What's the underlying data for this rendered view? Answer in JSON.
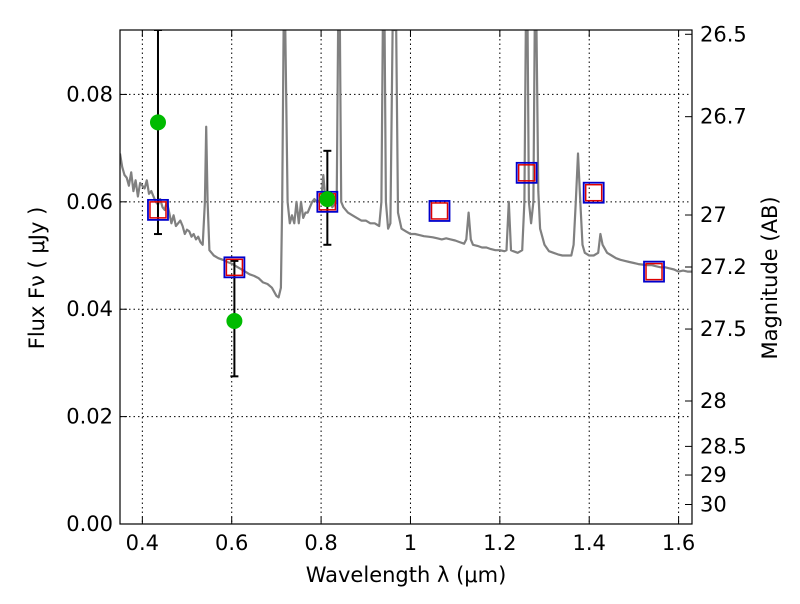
{
  "chart_data": {
    "type": "scatter",
    "title": "",
    "xlabel": "Wavelength  λ (μm)",
    "ylabel": "Flux  Fν  ( μJy )",
    "y2label": "Magnitude (AB)",
    "xlim": [
      0.35,
      1.63
    ],
    "ylim": [
      0.0,
      0.092
    ],
    "xticks": [
      0.4,
      0.6,
      0.8,
      1.0,
      1.2,
      1.4,
      1.6
    ],
    "xtick_labels": [
      "0.4",
      "0.6",
      "0.8",
      "1",
      "1.2",
      "1.4",
      "1.6"
    ],
    "yticks": [
      0.0,
      0.02,
      0.04,
      0.06,
      0.08
    ],
    "ytick_labels": [
      "0.00",
      "0.02",
      "0.04",
      "0.06",
      "0.08"
    ],
    "y2ticks": [
      {
        "label": "26.5",
        "mag": 26.5
      },
      {
        "label": "26.7",
        "mag": 26.7
      },
      {
        "label": "27",
        "mag": 27.0
      },
      {
        "label": "27.2",
        "mag": 27.2
      },
      {
        "label": "27.5",
        "mag": 27.5
      },
      {
        "label": "28",
        "mag": 28.0
      },
      {
        "label": "28.5",
        "mag": 28.5
      },
      {
        "label": "29",
        "mag": 29.0
      },
      {
        "label": "30",
        "mag": 30.0
      }
    ],
    "grid": true,
    "colors": {
      "sed": "#808080",
      "observed": "#00bb00",
      "model_box": "#0000cc",
      "model_box_inner": "#dd0000",
      "errorbar": "#000000"
    },
    "series": [
      {
        "kind": "line",
        "points": [
          [
            0.35,
            0.069
          ],
          [
            0.355,
            0.0665
          ],
          [
            0.36,
            0.065
          ],
          [
            0.365,
            0.0645
          ],
          [
            0.37,
            0.063
          ],
          [
            0.375,
            0.0655
          ],
          [
            0.38,
            0.062
          ],
          [
            0.385,
            0.064
          ],
          [
            0.39,
            0.061
          ],
          [
            0.395,
            0.0635
          ],
          [
            0.4,
            0.063
          ],
          [
            0.405,
            0.0625
          ],
          [
            0.41,
            0.064
          ],
          [
            0.415,
            0.0615
          ],
          [
            0.42,
            0.062
          ],
          [
            0.425,
            0.061
          ],
          [
            0.43,
            0.06
          ],
          [
            0.435,
            0.0595
          ],
          [
            0.44,
            0.0605
          ],
          [
            0.445,
            0.059
          ],
          [
            0.45,
            0.0585
          ],
          [
            0.455,
            0.06
          ],
          [
            0.46,
            0.058
          ],
          [
            0.465,
            0.056
          ],
          [
            0.47,
            0.0575
          ],
          [
            0.475,
            0.0555
          ],
          [
            0.48,
            0.056
          ],
          [
            0.485,
            0.0565
          ],
          [
            0.49,
            0.0555
          ],
          [
            0.495,
            0.054
          ],
          [
            0.5,
            0.0548
          ],
          [
            0.505,
            0.0545
          ],
          [
            0.51,
            0.0535
          ],
          [
            0.515,
            0.054
          ],
          [
            0.52,
            0.053
          ],
          [
            0.525,
            0.0535
          ],
          [
            0.53,
            0.0525
          ],
          [
            0.535,
            0.052
          ],
          [
            0.54,
            0.06
          ],
          [
            0.543,
            0.074
          ],
          [
            0.546,
            0.06
          ],
          [
            0.55,
            0.051
          ],
          [
            0.56,
            0.05
          ],
          [
            0.57,
            0.0495
          ],
          [
            0.58,
            0.0492
          ],
          [
            0.59,
            0.0488
          ],
          [
            0.6,
            0.0485
          ],
          [
            0.61,
            0.048
          ],
          [
            0.62,
            0.0475
          ],
          [
            0.63,
            0.047
          ],
          [
            0.64,
            0.0465
          ],
          [
            0.65,
            0.0462
          ],
          [
            0.66,
            0.0458
          ],
          [
            0.67,
            0.045
          ],
          [
            0.68,
            0.0447
          ],
          [
            0.69,
            0.044
          ],
          [
            0.7,
            0.0425
          ],
          [
            0.705,
            0.0422
          ],
          [
            0.71,
            0.044
          ],
          [
            0.713,
            0.06
          ],
          [
            0.716,
            0.092
          ],
          [
            0.72,
            0.092
          ],
          [
            0.725,
            0.06
          ],
          [
            0.73,
            0.056
          ],
          [
            0.735,
            0.0575
          ],
          [
            0.74,
            0.056
          ],
          [
            0.745,
            0.06
          ],
          [
            0.75,
            0.056
          ],
          [
            0.755,
            0.06
          ],
          [
            0.76,
            0.057
          ],
          [
            0.765,
            0.058
          ],
          [
            0.77,
            0.058
          ],
          [
            0.775,
            0.059
          ],
          [
            0.78,
            0.06
          ],
          [
            0.785,
            0.0605
          ],
          [
            0.79,
            0.06
          ],
          [
            0.795,
            0.0602
          ],
          [
            0.8,
            0.06
          ],
          [
            0.805,
            0.065
          ],
          [
            0.81,
            0.06
          ],
          [
            0.815,
            0.061
          ],
          [
            0.82,
            0.06
          ],
          [
            0.825,
            0.059
          ],
          [
            0.83,
            0.0595
          ],
          [
            0.835,
            0.06
          ],
          [
            0.838,
            0.092
          ],
          [
            0.842,
            0.092
          ],
          [
            0.845,
            0.06
          ],
          [
            0.85,
            0.059
          ],
          [
            0.86,
            0.058
          ],
          [
            0.87,
            0.0575
          ],
          [
            0.88,
            0.057
          ],
          [
            0.89,
            0.0565
          ],
          [
            0.9,
            0.0565
          ],
          [
            0.91,
            0.056
          ],
          [
            0.92,
            0.056
          ],
          [
            0.93,
            0.0555
          ],
          [
            0.935,
            0.06
          ],
          [
            0.938,
            0.092
          ],
          [
            0.942,
            0.092
          ],
          [
            0.945,
            0.06
          ],
          [
            0.95,
            0.055
          ],
          [
            0.955,
            0.056
          ],
          [
            0.96,
            0.092
          ],
          [
            0.968,
            0.092
          ],
          [
            0.972,
            0.058
          ],
          [
            0.98,
            0.055
          ],
          [
            0.99,
            0.0545
          ],
          [
            1.0,
            0.054
          ],
          [
            1.01,
            0.054
          ],
          [
            1.02,
            0.0538
          ],
          [
            1.03,
            0.0536
          ],
          [
            1.04,
            0.0535
          ],
          [
            1.05,
            0.0534
          ],
          [
            1.06,
            0.0532
          ],
          [
            1.07,
            0.053
          ],
          [
            1.08,
            0.0532
          ],
          [
            1.09,
            0.053
          ],
          [
            1.1,
            0.0528
          ],
          [
            1.11,
            0.0525
          ],
          [
            1.12,
            0.0522
          ],
          [
            1.125,
            0.053
          ],
          [
            1.13,
            0.058
          ],
          [
            1.135,
            0.053
          ],
          [
            1.14,
            0.052
          ],
          [
            1.15,
            0.0518
          ],
          [
            1.16,
            0.0515
          ],
          [
            1.17,
            0.0515
          ],
          [
            1.18,
            0.0512
          ],
          [
            1.19,
            0.051
          ],
          [
            1.2,
            0.051
          ],
          [
            1.21,
            0.0508
          ],
          [
            1.215,
            0.051
          ],
          [
            1.22,
            0.06
          ],
          [
            1.225,
            0.051
          ],
          [
            1.23,
            0.0508
          ],
          [
            1.24,
            0.0505
          ],
          [
            1.25,
            0.051
          ],
          [
            1.255,
            0.06
          ],
          [
            1.258,
            0.092
          ],
          [
            1.262,
            0.092
          ],
          [
            1.265,
            0.06
          ],
          [
            1.27,
            0.056
          ],
          [
            1.275,
            0.06
          ],
          [
            1.278,
            0.092
          ],
          [
            1.282,
            0.092
          ],
          [
            1.286,
            0.062
          ],
          [
            1.29,
            0.055
          ],
          [
            1.3,
            0.052
          ],
          [
            1.31,
            0.0508
          ],
          [
            1.32,
            0.0505
          ],
          [
            1.33,
            0.0502
          ],
          [
            1.34,
            0.05
          ],
          [
            1.35,
            0.05
          ],
          [
            1.36,
            0.05
          ],
          [
            1.365,
            0.052
          ],
          [
            1.37,
            0.06
          ],
          [
            1.375,
            0.069
          ],
          [
            1.38,
            0.06
          ],
          [
            1.385,
            0.052
          ],
          [
            1.39,
            0.0505
          ],
          [
            1.4,
            0.05
          ],
          [
            1.41,
            0.05
          ],
          [
            1.42,
            0.0505
          ],
          [
            1.425,
            0.054
          ],
          [
            1.43,
            0.052
          ],
          [
            1.44,
            0.0505
          ],
          [
            1.45,
            0.05
          ],
          [
            1.46,
            0.0495
          ],
          [
            1.47,
            0.0492
          ],
          [
            1.48,
            0.049
          ],
          [
            1.49,
            0.0488
          ],
          [
            1.5,
            0.0486
          ],
          [
            1.51,
            0.0484
          ],
          [
            1.52,
            0.0483
          ],
          [
            1.53,
            0.0482
          ],
          [
            1.54,
            0.0482
          ],
          [
            1.55,
            0.048
          ],
          [
            1.56,
            0.0478
          ],
          [
            1.57,
            0.0478
          ],
          [
            1.58,
            0.0476
          ],
          [
            1.59,
            0.0474
          ],
          [
            1.6,
            0.047
          ],
          [
            1.61,
            0.0472
          ],
          [
            1.62,
            0.047
          ],
          [
            1.63,
            0.047
          ]
        ]
      },
      {
        "kind": "observed_errorbar",
        "points": [
          {
            "x": 0.435,
            "y": 0.0748,
            "ylo": 0.054,
            "yhi": 0.092
          },
          {
            "x": 0.606,
            "y": 0.0378,
            "ylo": 0.0275,
            "yhi": 0.049
          },
          {
            "x": 0.814,
            "y": 0.0605,
            "ylo": 0.052,
            "yhi": 0.0695
          }
        ]
      },
      {
        "kind": "model_photometry",
        "points": [
          {
            "x": 0.435,
            "y": 0.0585
          },
          {
            "x": 0.606,
            "y": 0.0478
          },
          {
            "x": 0.814,
            "y": 0.06
          },
          {
            "x": 1.065,
            "y": 0.0583
          },
          {
            "x": 1.26,
            "y": 0.0654
          },
          {
            "x": 1.41,
            "y": 0.0617
          },
          {
            "x": 1.545,
            "y": 0.047
          }
        ]
      }
    ]
  }
}
